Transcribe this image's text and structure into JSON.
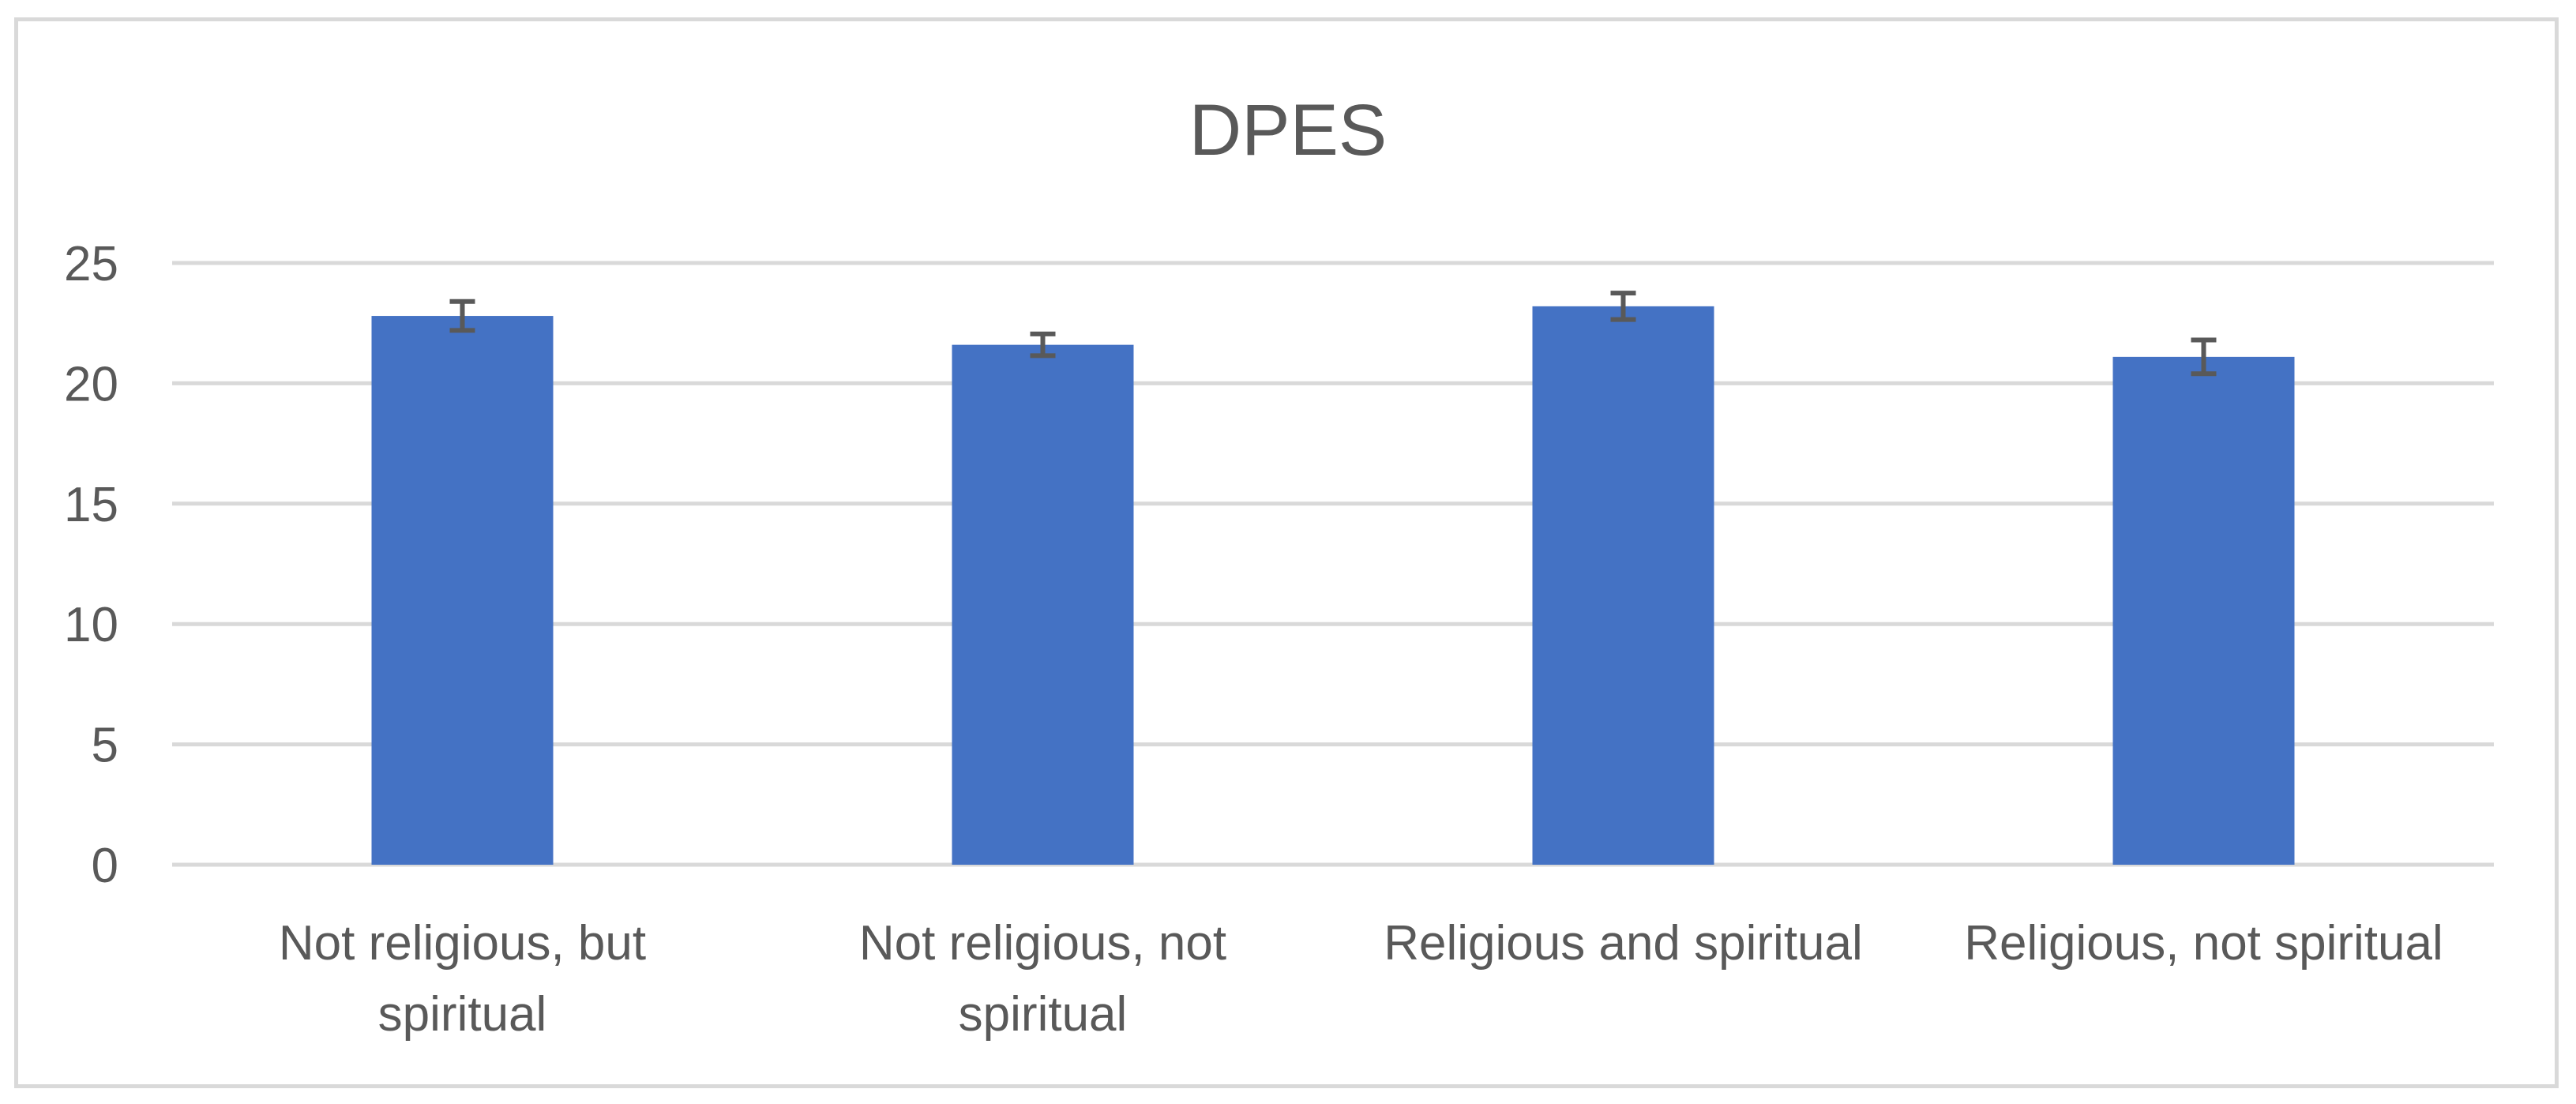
{
  "chart_data": {
    "type": "bar",
    "title": "DPES",
    "xlabel": "",
    "ylabel": "",
    "categories": [
      [
        "Not religious, but",
        "spiritual"
      ],
      [
        "Not religious, not",
        "spiritual"
      ],
      [
        "Religious and spiritual"
      ],
      [
        "Religious, not spiritual"
      ]
    ],
    "values": [
      22.8,
      21.6,
      23.2,
      21.1
    ],
    "error": [
      0.6,
      0.45,
      0.55,
      0.7
    ],
    "ylim": [
      0,
      25
    ],
    "yticks": [
      0,
      5,
      10,
      15,
      20,
      25
    ],
    "grid": true,
    "legend": "none",
    "colors": {
      "bar": "#4472c4",
      "grid": "#d9d9d9",
      "error_bar": "#595959",
      "text": "#595959"
    }
  }
}
